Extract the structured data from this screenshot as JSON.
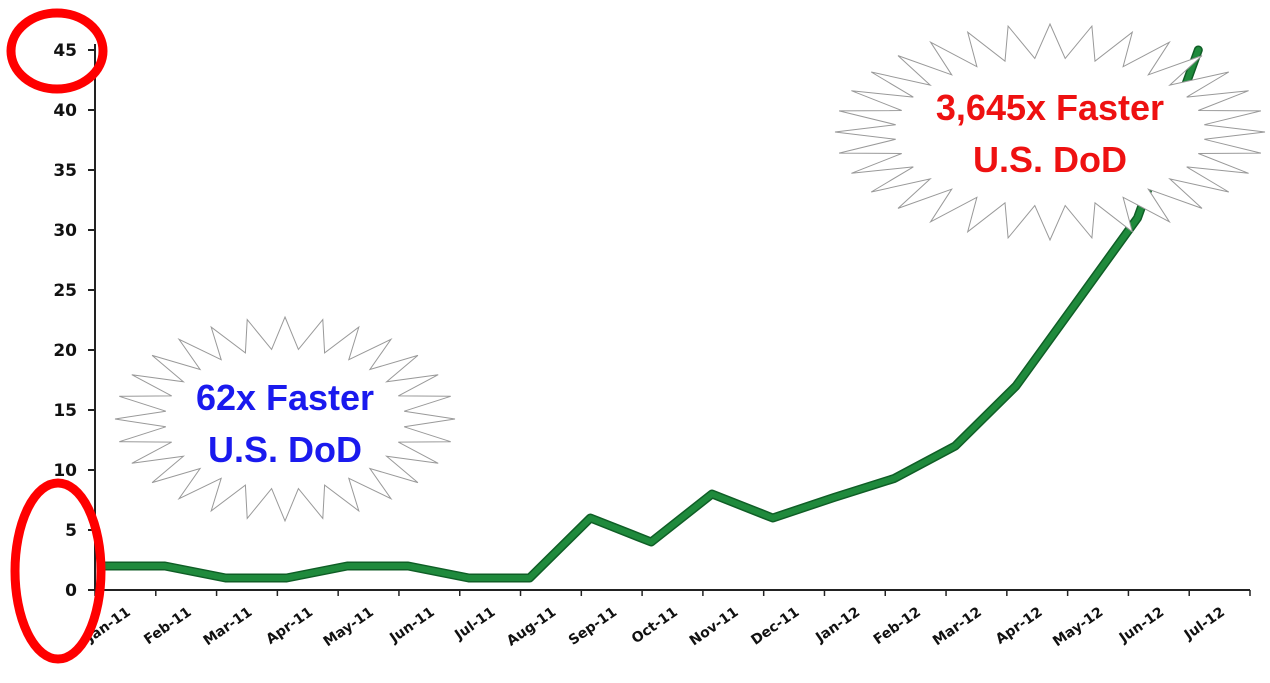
{
  "chart_data": {
    "type": "line",
    "title": "",
    "xlabel": "",
    "ylabel": "",
    "categories": [
      "Jan-11",
      "Feb-11",
      "Mar-11",
      "Apr-11",
      "May-11",
      "Jun-11",
      "Jul-11",
      "Aug-11",
      "Sep-11",
      "Oct-11",
      "Nov-11",
      "Dec-11",
      "Jan-12",
      "Feb-12",
      "Mar-12",
      "Apr-12",
      "May-12",
      "Jun-12",
      "Jul-12"
    ],
    "x_mid": [
      {
        "x": "mid Jan-11",
        "y": 2
      }
    ],
    "points": [
      {
        "x": "Jan-11",
        "y": 2
      },
      {
        "x": "Feb-11",
        "y": 2
      },
      {
        "x": "Mar-11",
        "y": 1
      },
      {
        "x": "Apr-11",
        "y": 1
      },
      {
        "x": "May-11",
        "y": 2
      },
      {
        "x": "Jun-11",
        "y": 2
      },
      {
        "x": "Jul-11",
        "y": 1
      },
      {
        "x": "Aug-11",
        "y": 1
      },
      {
        "x": "Sep-11",
        "y": 6
      },
      {
        "x": "Oct-11",
        "y": 4
      },
      {
        "x": "Nov-11",
        "y": 8
      },
      {
        "x": "Dec-11",
        "y": 6
      },
      {
        "x": "Jan-12",
        "y": 7.7
      },
      {
        "x": "Feb-12",
        "y": 9.3
      },
      {
        "x": "Mar-12",
        "y": 12
      },
      {
        "x": "Apr-12",
        "y": 17
      },
      {
        "x": "May-12",
        "y": 24
      },
      {
        "x": "Jun-12",
        "y": 31
      },
      {
        "x": "Jul-12",
        "y": 45
      }
    ],
    "ylim": [
      0,
      45
    ],
    "yticks": [
      0,
      5,
      10,
      15,
      20,
      25,
      30,
      35,
      40,
      45
    ],
    "grid": false,
    "legend": "none",
    "line_color": "#1f8a3c",
    "annotations": [
      {
        "lines": [
          "62x Faster",
          "U.S. DoD"
        ],
        "color": "#1a1aee"
      },
      {
        "lines": [
          "3,645x Faster",
          "U.S. DoD"
        ],
        "color": "#ee1111"
      }
    ],
    "highlight_color": "#ff0000"
  }
}
